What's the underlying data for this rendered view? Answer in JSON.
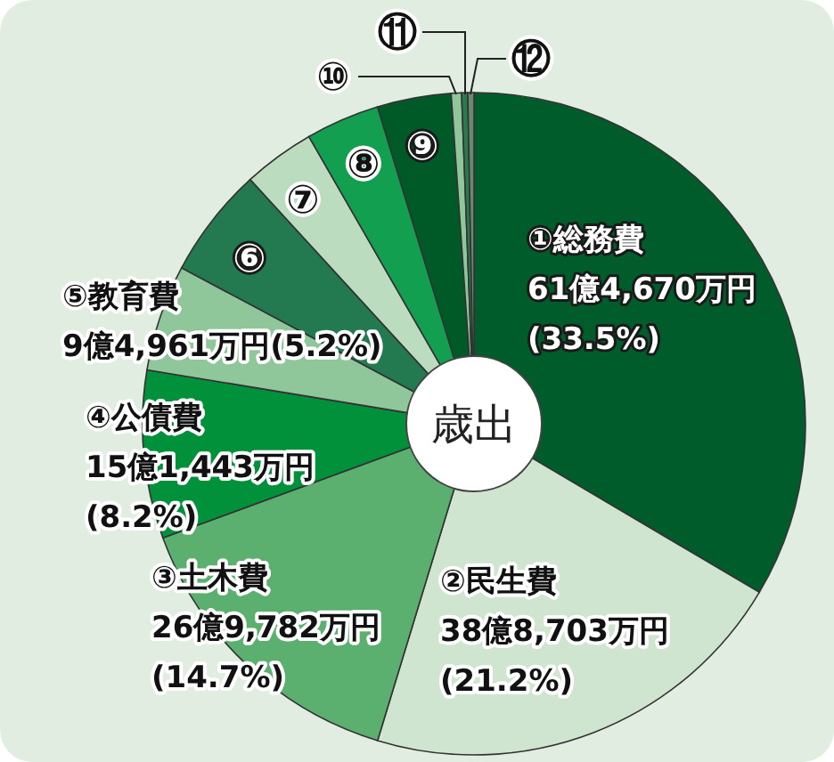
{
  "chart_data": {
    "type": "donut",
    "title": "歳出",
    "categories": [
      "①総務費",
      "②民生費",
      "③土木費",
      "④公債費",
      "⑤教育費",
      "⑥",
      "⑦",
      "⑧",
      "⑨",
      "⑩",
      "⑪",
      "⑫"
    ],
    "values": [
      33.5,
      21.2,
      14.7,
      8.2,
      5.2,
      5.4,
      3.5,
      3.6,
      3.6,
      0.5,
      0.3,
      0.3
    ],
    "value_labels": [
      "61億4,670万円\n(33.5%)",
      "38億8,703万円\n(21.2%)",
      "26億9,782万円\n(14.7%)",
      "15億1,443万円\n(8.2%)",
      "9億4,961万円(5.2%)",
      null,
      null,
      null,
      null,
      null,
      null,
      null
    ],
    "colors": [
      "#005c2a",
      "#cfe5d0",
      "#5bb06f",
      "#00913a",
      "#8fc79a",
      "#237a50",
      "#bcdcc0",
      "#12a050",
      "#005a28",
      "#8fc79a",
      "#2a7a50",
      "#6a8a70"
    ]
  }
}
